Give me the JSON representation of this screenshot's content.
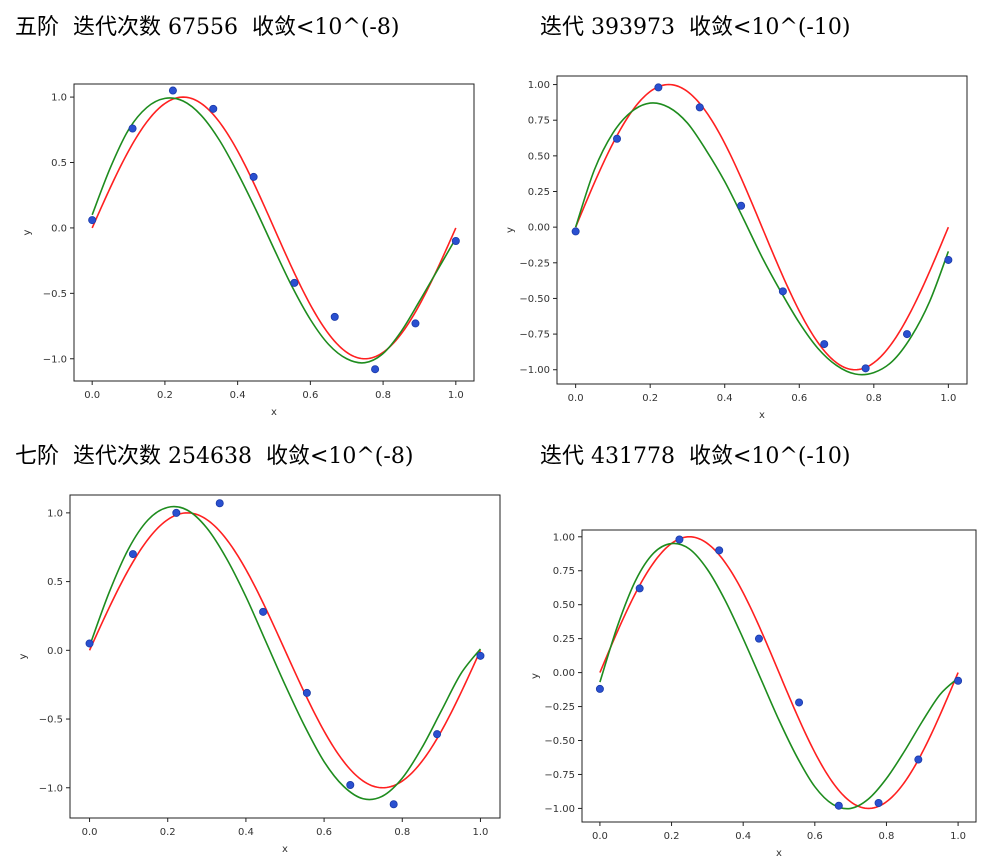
{
  "captions": [
    "五阶  迭代次数 67556  收敛<10^(-8)",
    "迭代 393973  收敛<10^(-10)",
    "七阶  迭代次数 254638  收敛<10^(-8)",
    "迭代 431778  收敛<10^(-10)"
  ],
  "colors": {
    "true_curve": "#ff2020",
    "fit_curve": "#1e8c1e",
    "points": "#2a50d0"
  },
  "chart_data": [
    {
      "type": "scatter",
      "title": "",
      "xlabel": "x",
      "ylabel": "y",
      "xlim": [
        -0.05,
        1.05
      ],
      "ylim": [
        -1.17,
        1.1
      ],
      "xticks": [
        0.0,
        0.2,
        0.4,
        0.6,
        0.8,
        1.0
      ],
      "xtick_labels": [
        "0.0",
        "0.2",
        "0.4",
        "0.6",
        "0.8",
        "1.0"
      ],
      "yticks": [
        1.0,
        0.5,
        0.0,
        -0.5,
        -1.0
      ],
      "ytick_labels": [
        "1.0",
        "0.5",
        "0.0",
        "−0.5",
        "−1.0"
      ],
      "points": {
        "x": [
          0.0,
          0.111,
          0.222,
          0.333,
          0.444,
          0.556,
          0.667,
          0.778,
          0.889,
          1.0
        ],
        "y": [
          0.06,
          0.76,
          1.05,
          0.91,
          0.39,
          -0.42,
          -0.68,
          -1.08,
          -0.73,
          -0.1
        ]
      },
      "fit_curve": {
        "x": [
          0.0,
          0.05,
          0.1,
          0.15,
          0.2,
          0.25,
          0.3,
          0.35,
          0.4,
          0.45,
          0.5,
          0.55,
          0.6,
          0.65,
          0.7,
          0.75,
          0.8,
          0.85,
          0.9,
          0.95,
          1.0
        ],
        "y": [
          0.1,
          0.46,
          0.75,
          0.92,
          0.99,
          0.97,
          0.86,
          0.67,
          0.42,
          0.14,
          -0.16,
          -0.45,
          -0.7,
          -0.89,
          -1.0,
          -1.03,
          -0.96,
          -0.79,
          -0.56,
          -0.32,
          -0.08
        ]
      }
    },
    {
      "type": "scatter",
      "title": "",
      "xlabel": "x",
      "ylabel": "y",
      "xlim": [
        -0.05,
        1.05
      ],
      "ylim": [
        -1.1,
        1.06
      ],
      "xticks": [
        0.0,
        0.2,
        0.4,
        0.6,
        0.8,
        1.0
      ],
      "xtick_labels": [
        "0.0",
        "0.2",
        "0.4",
        "0.6",
        "0.8",
        "1.0"
      ],
      "yticks": [
        1.0,
        0.75,
        0.5,
        0.25,
        0.0,
        -0.25,
        -0.5,
        -0.75,
        -1.0
      ],
      "ytick_labels": [
        "1.00",
        "0.75",
        "0.50",
        "0.25",
        "0.00",
        "−0.25",
        "−0.50",
        "−0.75",
        "−1.00"
      ],
      "points": {
        "x": [
          0.0,
          0.111,
          0.222,
          0.333,
          0.444,
          0.556,
          0.667,
          0.778,
          0.889,
          1.0
        ],
        "y": [
          -0.03,
          0.62,
          0.98,
          0.84,
          0.15,
          -0.45,
          -0.82,
          -0.99,
          -0.75,
          -0.23
        ]
      },
      "fit_curve": {
        "x": [
          0.0,
          0.05,
          0.1,
          0.15,
          0.2,
          0.25,
          0.3,
          0.35,
          0.4,
          0.45,
          0.5,
          0.55,
          0.6,
          0.65,
          0.7,
          0.75,
          0.8,
          0.85,
          0.9,
          0.95,
          1.0
        ],
        "y": [
          0.0,
          0.4,
          0.66,
          0.81,
          0.87,
          0.84,
          0.73,
          0.54,
          0.32,
          0.06,
          -0.21,
          -0.45,
          -0.67,
          -0.85,
          -0.97,
          -1.03,
          -1.02,
          -0.94,
          -0.77,
          -0.52,
          -0.17
        ]
      }
    },
    {
      "type": "scatter",
      "title": "",
      "xlabel": "x",
      "ylabel": "y",
      "xlim": [
        -0.05,
        1.05
      ],
      "ylim": [
        -1.22,
        1.13
      ],
      "xticks": [
        0.0,
        0.2,
        0.4,
        0.6,
        0.8,
        1.0
      ],
      "xtick_labels": [
        "0.0",
        "0.2",
        "0.4",
        "0.6",
        "0.8",
        "1.0"
      ],
      "yticks": [
        1.0,
        0.5,
        0.0,
        -0.5,
        -1.0
      ],
      "ytick_labels": [
        "1.0",
        "0.5",
        "0.0",
        "−0.5",
        "−1.0"
      ],
      "points": {
        "x": [
          0.0,
          0.111,
          0.222,
          0.333,
          0.444,
          0.556,
          0.667,
          0.778,
          0.889,
          1.0
        ],
        "y": [
          0.05,
          0.7,
          1.0,
          1.07,
          0.28,
          -0.31,
          -0.98,
          -1.12,
          -0.61,
          -0.04
        ]
      },
      "fit_curve": {
        "x": [
          0.0,
          0.05,
          0.1,
          0.15,
          0.2,
          0.25,
          0.3,
          0.35,
          0.4,
          0.45,
          0.5,
          0.55,
          0.6,
          0.65,
          0.7,
          0.75,
          0.8,
          0.85,
          0.9,
          0.95,
          1.0
        ],
        "y": [
          0.03,
          0.42,
          0.74,
          0.95,
          1.04,
          1.02,
          0.89,
          0.67,
          0.39,
          0.07,
          -0.25,
          -0.55,
          -0.81,
          -0.99,
          -1.08,
          -1.06,
          -0.93,
          -0.71,
          -0.44,
          -0.17,
          0.01
        ]
      }
    },
    {
      "type": "scatter",
      "title": "",
      "xlabel": "x",
      "ylabel": "y",
      "xlim": [
        -0.05,
        1.05
      ],
      "ylim": [
        -1.1,
        1.05
      ],
      "xticks": [
        0.0,
        0.2,
        0.4,
        0.6,
        0.8,
        1.0
      ],
      "xtick_labels": [
        "0.0",
        "0.2",
        "0.4",
        "0.6",
        "0.8",
        "1.0"
      ],
      "yticks": [
        1.0,
        0.75,
        0.5,
        0.25,
        0.0,
        -0.25,
        -0.5,
        -0.75,
        -1.0
      ],
      "ytick_labels": [
        "1.00",
        "0.75",
        "0.50",
        "0.25",
        "0.00",
        "−0.25",
        "−0.50",
        "−0.75",
        "−1.00"
      ],
      "points": {
        "x": [
          0.0,
          0.111,
          0.222,
          0.333,
          0.444,
          0.556,
          0.667,
          0.778,
          0.889,
          1.0
        ],
        "y": [
          -0.12,
          0.62,
          0.98,
          0.9,
          0.25,
          -0.22,
          -0.98,
          -0.96,
          -0.64,
          -0.06
        ]
      },
      "fit_curve": {
        "x": [
          0.0,
          0.05,
          0.1,
          0.15,
          0.2,
          0.25,
          0.3,
          0.35,
          0.4,
          0.45,
          0.5,
          0.55,
          0.6,
          0.65,
          0.7,
          0.75,
          0.8,
          0.85,
          0.9,
          0.95,
          1.0
        ],
        "y": [
          -0.07,
          0.35,
          0.68,
          0.88,
          0.95,
          0.91,
          0.76,
          0.53,
          0.25,
          -0.05,
          -0.35,
          -0.62,
          -0.84,
          -0.97,
          -1.0,
          -0.93,
          -0.78,
          -0.58,
          -0.36,
          -0.16,
          -0.04
        ]
      }
    }
  ]
}
